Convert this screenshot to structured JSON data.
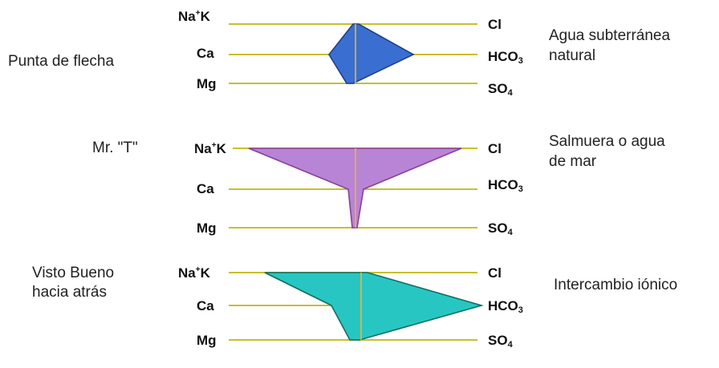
{
  "colors": {
    "line": "#c8bf2c",
    "axis": "#f0b432",
    "text": "#111111"
  },
  "diagrams": [
    {
      "left_label": [
        "Punta de flecha"
      ],
      "right_label": [
        "Agua subterránea",
        "natural"
      ],
      "cation_labels": {
        "na_main": "Na",
        "na_sup": "+",
        "na_tail": "K",
        "ca": "Ca",
        "mg": "Mg"
      },
      "anion_labels": {
        "cl": "Cl",
        "hco3_main": "HCO",
        "hco3_sub": "3",
        "so4_main": "SO",
        "so4_sub": "4"
      },
      "fill": "#3a6fd1",
      "stroke": "#1e3f8a"
    },
    {
      "left_label": [
        "Mr. \"T\""
      ],
      "right_label": [
        "Salmuera o agua",
        "de mar"
      ],
      "cation_labels": {
        "na_main": "Na",
        "na_sup": "+",
        "na_tail": "K",
        "ca": "Ca",
        "mg": "Mg"
      },
      "anion_labels": {
        "cl": "Cl",
        "hco3_main": "HCO",
        "hco3_sub": "3",
        "so4_main": "SO",
        "so4_sub": "4"
      },
      "fill": "#b884d6",
      "stroke": "#8a3f9a"
    },
    {
      "left_label": [
        "Visto Bueno",
        "hacia atrás"
      ],
      "right_label": [
        "Intercambio iónico"
      ],
      "cation_labels": {
        "na_main": "Na",
        "na_sup": "+",
        "na_tail": "K",
        "ca": "Ca",
        "mg": "Mg"
      },
      "anion_labels": {
        "cl": "Cl",
        "hco3_main": "HCO",
        "hco3_sub": "3",
        "so4_main": "SO",
        "so4_sub": "4"
      },
      "fill": "#28c6c2",
      "stroke": "#0f6e64"
    }
  ]
}
